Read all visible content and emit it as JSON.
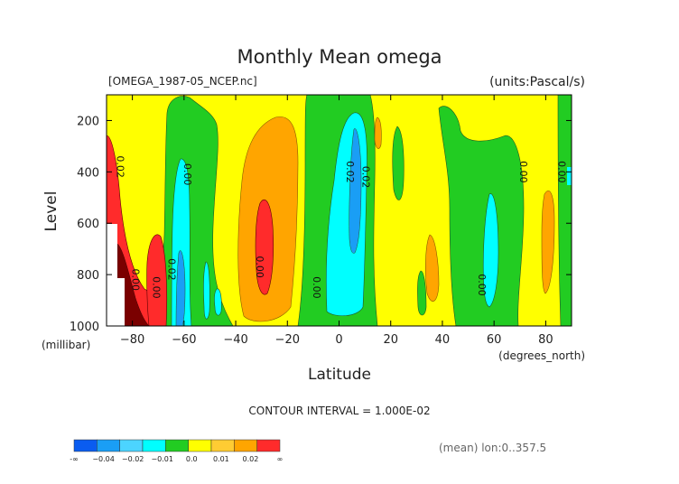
{
  "chart_data": {
    "type": "contour",
    "title": "Monthly Mean omega",
    "file_label": "[OMEGA_1987-05_NCEP.nc]",
    "units_label": "(units:Pascal/s)",
    "xlabel": "Latitude",
    "x_unit_label": "(degrees_north)",
    "ylabel": "Level",
    "y_unit_label": "(millibar)",
    "xlim": [
      -90,
      90
    ],
    "ylim": [
      1000,
      100
    ],
    "x_ticks": [
      -80,
      -60,
      -40,
      -20,
      0,
      20,
      40,
      60,
      80
    ],
    "y_ticks": [
      200,
      400,
      600,
      800,
      1000
    ],
    "contour_interval_text": "CONTOUR INTERVAL = 1.000E-02",
    "averaging_note": "(mean) lon:0..357.5",
    "contour_labels": [
      "0.02",
      "0.00",
      "0.00",
      "0.02",
      "0.00",
      "0.00",
      "0.02",
      "0.02",
      "0.00",
      "0.00",
      "0.00",
      "0.00"
    ],
    "legend": {
      "colors": [
        "#0a5cf0",
        "#1a9ef5",
        "#4cd4ff",
        "#00ffff",
        "#22cc22",
        "#ffff00",
        "#ffcc33",
        "#ffa500",
        "#ff2b2b"
      ],
      "labels": [
        "-∞",
        "−0.04",
        "−0.02",
        "−0.01",
        "0.0",
        "0.01",
        "0.02",
        "∞"
      ]
    }
  }
}
